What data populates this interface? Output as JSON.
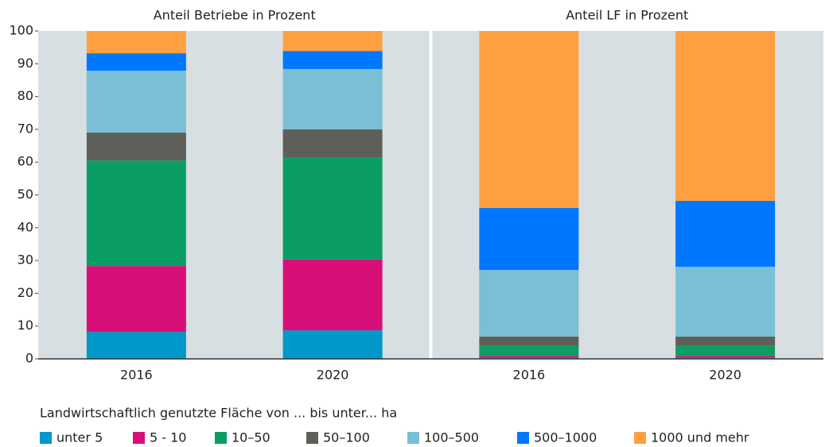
{
  "chart_data": {
    "type": "stacked_bar",
    "panel_titles": [
      "Anteil Betriebe in Prozent",
      "Anteil LF in Prozent"
    ],
    "categories": [
      "2016",
      "2020",
      "2016",
      "2020"
    ],
    "ylim": [
      0,
      100
    ],
    "yticks": [
      0,
      10,
      20,
      30,
      40,
      50,
      60,
      70,
      80,
      90,
      100
    ],
    "grid": false,
    "legend_title": "Landwirtschaftlich genutzte Fläche von ... bis unter... ha",
    "legend_position": "bottom",
    "series": [
      {
        "name": "unter 5",
        "color": "#0098c8",
        "values": [
          8.2,
          8.7,
          0.3,
          0.3
        ]
      },
      {
        "name": "5 - 10",
        "color": "#d90f79",
        "values": [
          20.1,
          21.6,
          0.6,
          0.6
        ]
      },
      {
        "name": "10–50",
        "color": "#0a9e64",
        "values": [
          32.2,
          31.2,
          3.2,
          3.2
        ]
      },
      {
        "name": "50–100",
        "color": "#5f5f5a",
        "values": [
          8.5,
          8.5,
          2.7,
          2.7
        ]
      },
      {
        "name": "100–500",
        "color": "#79bfd6",
        "values": [
          18.9,
          18.4,
          20.3,
          21.3
        ]
      },
      {
        "name": "500–1000",
        "color": "#0077ff",
        "values": [
          5.3,
          5.5,
          18.9,
          20.1
        ]
      },
      {
        "name": "1000 und mehr",
        "color": "#ffa040",
        "values": [
          6.8,
          6.1,
          54.0,
          51.8
        ]
      }
    ]
  }
}
